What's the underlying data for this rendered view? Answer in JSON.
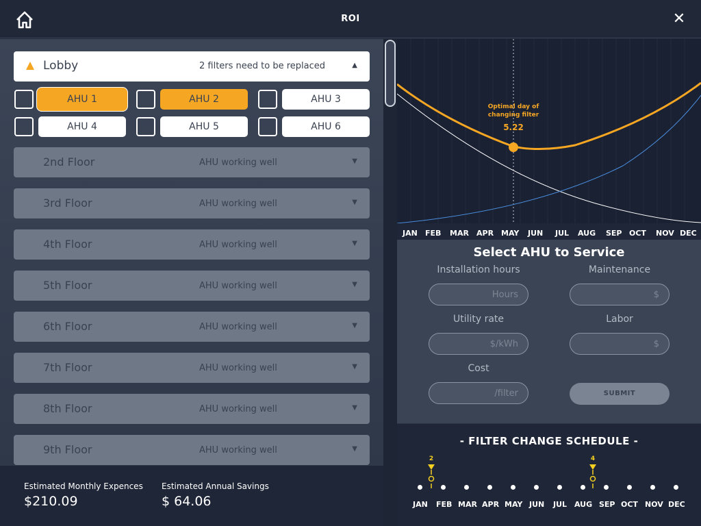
{
  "header": {
    "title": "ROI"
  },
  "lobby": {
    "name": "Lobby",
    "status": "2 filters need to be replaced",
    "caret": "▲"
  },
  "ahus": [
    {
      "label": "AHU 1",
      "selected": true
    },
    {
      "label": "AHU 2",
      "selected": true
    },
    {
      "label": "AHU 3",
      "selected": false
    },
    {
      "label": "AHU 4",
      "selected": false
    },
    {
      "label": "AHU 5",
      "selected": false
    },
    {
      "label": "AHU 6",
      "selected": false
    }
  ],
  "floors": [
    {
      "name": "2nd Floor",
      "status": "AHU working well"
    },
    {
      "name": "3rd Floor",
      "status": "AHU working well"
    },
    {
      "name": "4th Floor",
      "status": "AHU working well"
    },
    {
      "name": "5th Floor",
      "status": "AHU working well"
    },
    {
      "name": "6th Floor",
      "status": "AHU working well"
    },
    {
      "name": "7th Floor",
      "status": "AHU working well"
    },
    {
      "name": "8th Floor",
      "status": "AHU working well"
    },
    {
      "name": "9th Floor",
      "status": "AHU working well"
    }
  ],
  "floor_caret": "▼",
  "totals": {
    "monthly_label": "Estimated Monthly Expences",
    "monthly_value": "$210.09",
    "annual_label": "Estimated Annual Savings",
    "annual_value": "$ 64.06"
  },
  "chart": {
    "annotation_line1": "Optimal day of",
    "annotation_line2": "changing filter",
    "optimal_value": "5.22",
    "months": [
      "JAN",
      "FEB",
      "MAR",
      "APR",
      "MAY",
      "JUN",
      "JUL",
      "AUG",
      "SEP",
      "OCT",
      "NOV",
      "DEC"
    ],
    "colors": {
      "optimal": "#f5a623",
      "rising": "#4a8fe0",
      "falling": "#ffffff"
    }
  },
  "form": {
    "title": "Select AHU to Service",
    "installation_label": "Installation hours",
    "installation_placeholder": "Hours",
    "maintenance_label": "Maintenance",
    "maintenance_placeholder": "$",
    "utility_label": "Utility rate",
    "utility_placeholder": "$/kWh",
    "labor_label": "Labor",
    "labor_placeholder": "$",
    "cost_label": "Cost",
    "cost_placeholder": "/filter",
    "submit_label": "SUBMIT"
  },
  "schedule": {
    "title": "-  FILTER CHANGE SCHEDULE  -",
    "months": [
      "JAN",
      "FEB",
      "MAR",
      "APR",
      "MAY",
      "JUN",
      "JUL",
      "AUG",
      "SEP",
      "OCT",
      "NOV",
      "DEC"
    ],
    "markers": [
      {
        "count": "2"
      },
      {
        "count": "4"
      }
    ]
  },
  "icons": {
    "home": "home-icon",
    "close": "close-icon",
    "warning": "warning-icon"
  }
}
